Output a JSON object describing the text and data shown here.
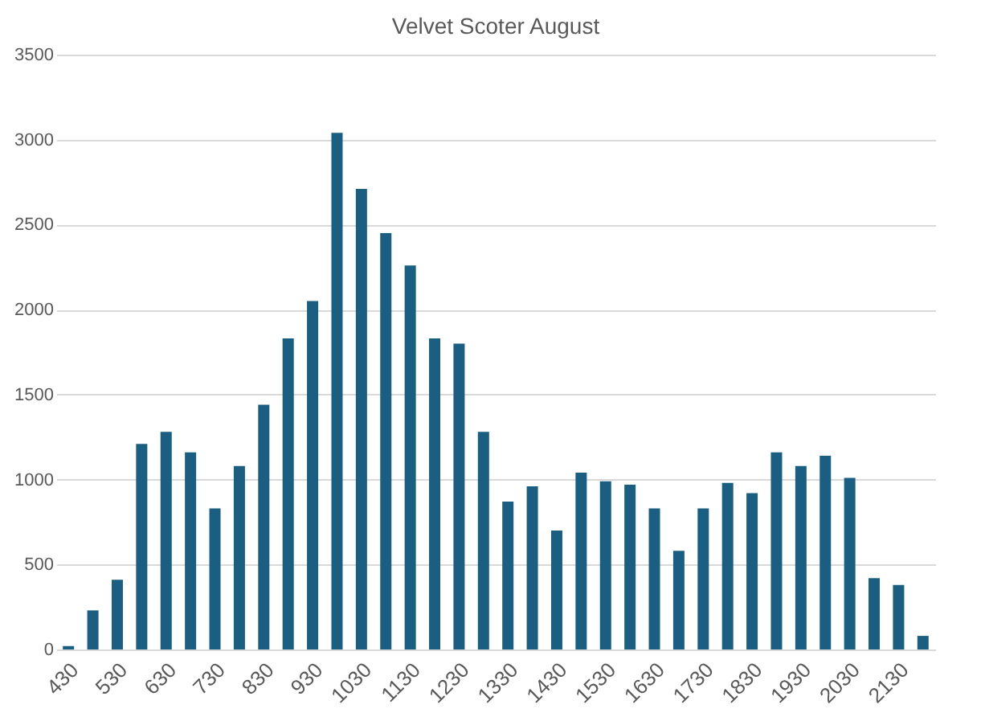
{
  "chart_data": {
    "type": "bar",
    "title": "Velvet Scoter  August",
    "categories": [
      "430",
      null,
      "530",
      null,
      "630",
      null,
      "730",
      null,
      "830",
      null,
      "930",
      null,
      "1030",
      null,
      "1130",
      null,
      "1230",
      null,
      "1330",
      null,
      "1430",
      null,
      "1530",
      null,
      "1630",
      null,
      "1730",
      null,
      "1830",
      null,
      "1930",
      null,
      "2030",
      null,
      "2130",
      null
    ],
    "values": [
      20,
      230,
      410,
      1210,
      1280,
      1160,
      830,
      1080,
      1440,
      1830,
      2050,
      3040,
      2710,
      2450,
      2260,
      1830,
      1800,
      1280,
      870,
      960,
      700,
      1040,
      990,
      970,
      830,
      580,
      830,
      980,
      920,
      1160,
      1080,
      1140,
      1010,
      420,
      380,
      80
    ],
    "color": "#1a5f82",
    "ylim": [
      0,
      3500
    ],
    "yticks": [
      0,
      500,
      1000,
      1500,
      2000,
      2500,
      3000,
      3500
    ],
    "grid": "y"
  }
}
